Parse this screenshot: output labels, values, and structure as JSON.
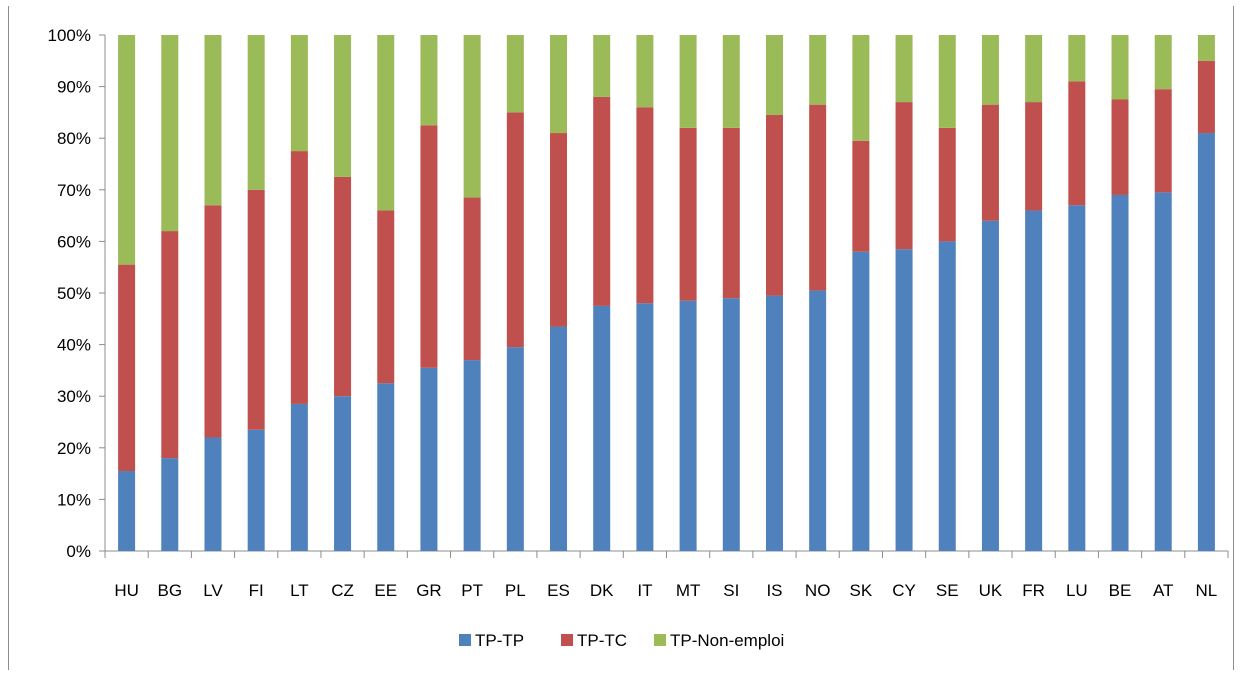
{
  "chart_data": {
    "type": "bar",
    "stacked": true,
    "categories": [
      "HU",
      "BG",
      "LV",
      "FI",
      "LT",
      "CZ",
      "EE",
      "GR",
      "PT",
      "PL",
      "ES",
      "DK",
      "IT",
      "MT",
      "SI",
      "IS",
      "NO",
      "SK",
      "CY",
      "SE",
      "UK",
      "FR",
      "LU",
      "BE",
      "AT",
      "NL"
    ],
    "series": [
      {
        "name": "TP-TP",
        "color": "#4f81bd",
        "values": [
          15.5,
          18,
          22,
          23.5,
          28.5,
          30,
          32.5,
          35.5,
          37,
          39.5,
          43.5,
          47.5,
          48,
          48.5,
          49,
          49.5,
          50.5,
          58,
          58.5,
          60,
          64,
          66,
          67,
          69,
          69.5,
          81
        ]
      },
      {
        "name": "TP-TC",
        "color": "#c0504d",
        "values": [
          40,
          44,
          45,
          46.5,
          49,
          42.5,
          33.5,
          47,
          31.5,
          45.5,
          37.5,
          40.5,
          38,
          33.5,
          33,
          35,
          36,
          21.5,
          28.5,
          22,
          22.5,
          21,
          24,
          18.5,
          20,
          14
        ]
      },
      {
        "name": "TP-Non-emploi",
        "color": "#9bbb59",
        "values": [
          44.5,
          38,
          33,
          30,
          22.5,
          27.5,
          34,
          17.5,
          31.5,
          15,
          19,
          12,
          14,
          18,
          18,
          15.5,
          13.5,
          20.5,
          13,
          18,
          13.5,
          13,
          9,
          12.5,
          10.5,
          5
        ]
      }
    ],
    "yticks": [
      "0%",
      "10%",
      "20%",
      "30%",
      "40%",
      "50%",
      "60%",
      "70%",
      "80%",
      "90%",
      "100%"
    ],
    "ylim": [
      0,
      100
    ],
    "grid": false,
    "legend_position": "bottom",
    "title": "",
    "xlabel": "",
    "ylabel": ""
  }
}
